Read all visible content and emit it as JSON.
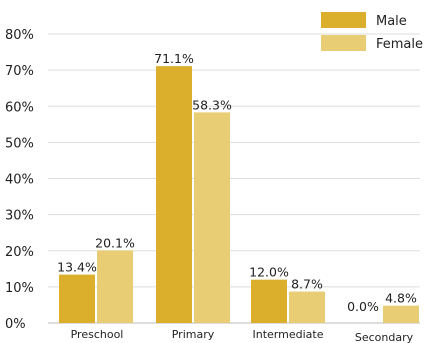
{
  "chart_data": {
    "type": "bar",
    "categories": [
      "Preschool",
      "Primary",
      "Intermediate",
      "Secondary"
    ],
    "ylim": [
      0,
      80
    ],
    "yticks": [
      0,
      10,
      20,
      30,
      40,
      50,
      60,
      70,
      80
    ],
    "ytick_labels": [
      "0%",
      "10%",
      "20%",
      "30%",
      "40%",
      "50%",
      "60%",
      "70%",
      "80%"
    ],
    "grid": true,
    "legend_position": "top-right",
    "series": [
      {
        "name": "Male",
        "values": [
          13.4,
          71.1,
          12.0,
          0.0
        ],
        "labels": [
          "13.4%",
          "71.1%",
          "12.0%",
          "0.0%"
        ],
        "color": "#DBAE2B"
      },
      {
        "name": "Female",
        "values": [
          20.1,
          58.3,
          8.7,
          4.8
        ],
        "labels": [
          "20.1%",
          "58.3%",
          "8.7%",
          "4.8%"
        ],
        "color": "#E8CD74"
      }
    ]
  }
}
